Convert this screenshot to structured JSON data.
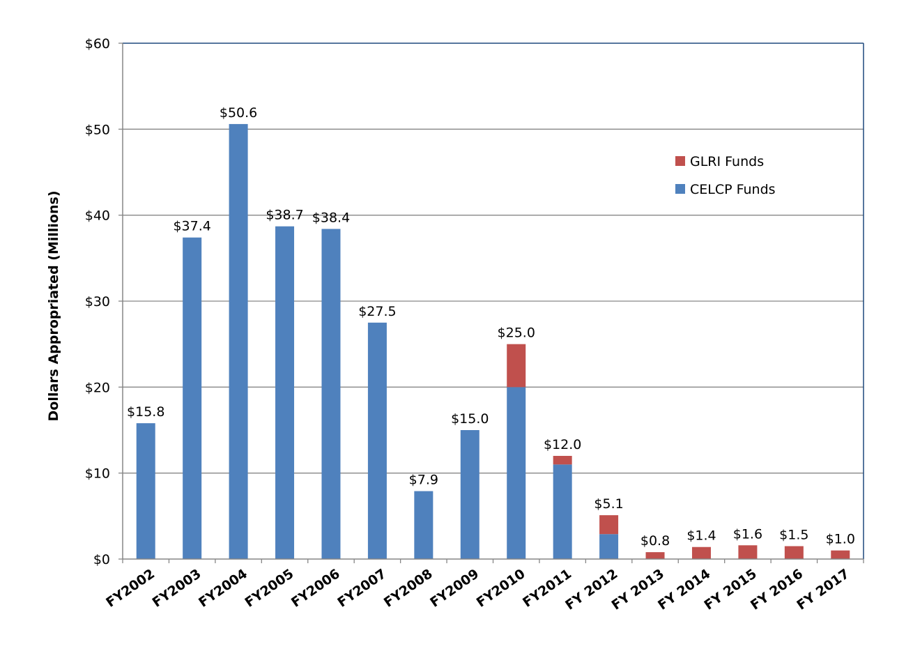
{
  "chart_data": {
    "type": "bar",
    "stacked": true,
    "ylabel": "Dollars Appropriated (Millions)",
    "xlabel": "",
    "ylim": [
      0,
      60
    ],
    "yticks": [
      0,
      10,
      20,
      30,
      40,
      50,
      60
    ],
    "ytick_labels": [
      "$0",
      "$10",
      "$20",
      "$30",
      "$40",
      "$50",
      "$60"
    ],
    "grid": true,
    "legend_position": "top-right",
    "categories": [
      "FY2002",
      "FY2003",
      "FY2004",
      "FY2005",
      "FY2006",
      "FY2007",
      "FY2008",
      "FY2009",
      "FY2010",
      "FY2011",
      "FY 2012",
      "FY 2013",
      "FY 2014",
      "FY 2015",
      "FY 2016",
      "FY 2017"
    ],
    "series": [
      {
        "name": "CELCP Funds",
        "color": "#4F81BD",
        "values": [
          15.8,
          37.4,
          50.6,
          38.7,
          38.4,
          27.5,
          7.9,
          15.0,
          20.0,
          11.0,
          2.9,
          0,
          0,
          0,
          0,
          0
        ]
      },
      {
        "name": "GLRI Funds",
        "color": "#C0504D",
        "values": [
          0,
          0,
          0,
          0,
          0,
          0,
          0,
          0,
          5.0,
          1.0,
          2.2,
          0.8,
          1.4,
          1.6,
          1.5,
          1.0
        ]
      }
    ],
    "data_labels": [
      "$15.8",
      "$37.4",
      "$50.6",
      "$38.7",
      "$38.4",
      "$27.5",
      "$7.9",
      "$15.0",
      "$25.0",
      "$12.0",
      "$5.1",
      "$0.8",
      "$1.4",
      "$1.6",
      "$1.5",
      "$1.0"
    ],
    "legend": [
      {
        "name": "GLRI Funds",
        "color": "#C0504D"
      },
      {
        "name": "CELCP Funds",
        "color": "#4F81BD"
      }
    ],
    "colors": {
      "plot_border": "#1F497D",
      "gridline": "#868686",
      "axis": "#868686"
    }
  }
}
